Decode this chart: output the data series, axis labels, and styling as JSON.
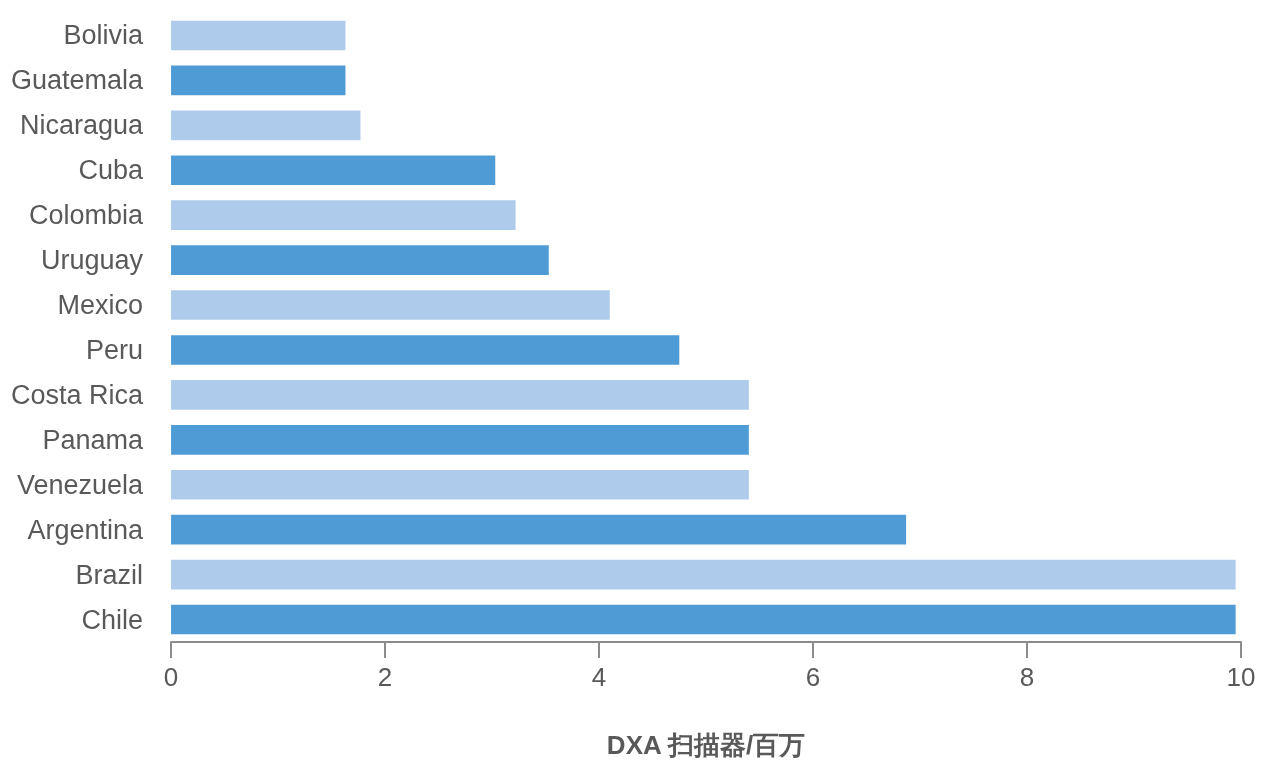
{
  "chart_data": {
    "type": "bar",
    "orientation": "horizontal",
    "xlabel": "DXA 扫描器/百万",
    "categories": [
      "Bolivia",
      "Guatemala",
      "Nicaragua",
      "Cuba",
      "Colombia",
      "Uruguay",
      "Mexico",
      "Peru",
      "Costa Rica",
      "Panama",
      "Venezuela",
      "Argentina",
      "Brazil",
      "Chile"
    ],
    "values": [
      1.63,
      1.63,
      1.77,
      3.03,
      3.22,
      3.53,
      4.1,
      4.75,
      5.4,
      5.4,
      5.4,
      6.87,
      9.95,
      9.95
    ],
    "colors": [
      "#aecbeb",
      "#4f9bd6",
      "#aecbeb",
      "#4f9bd6",
      "#aecbeb",
      "#4f9bd6",
      "#aecbeb",
      "#4f9bd6",
      "#aecbeb",
      "#4f9bd6",
      "#aecbeb",
      "#4f9bd6",
      "#aecbeb",
      "#4f9bd6"
    ],
    "xlim": [
      0,
      10
    ],
    "xticks": [
      0,
      2,
      4,
      6,
      8,
      10
    ],
    "grid": false
  }
}
